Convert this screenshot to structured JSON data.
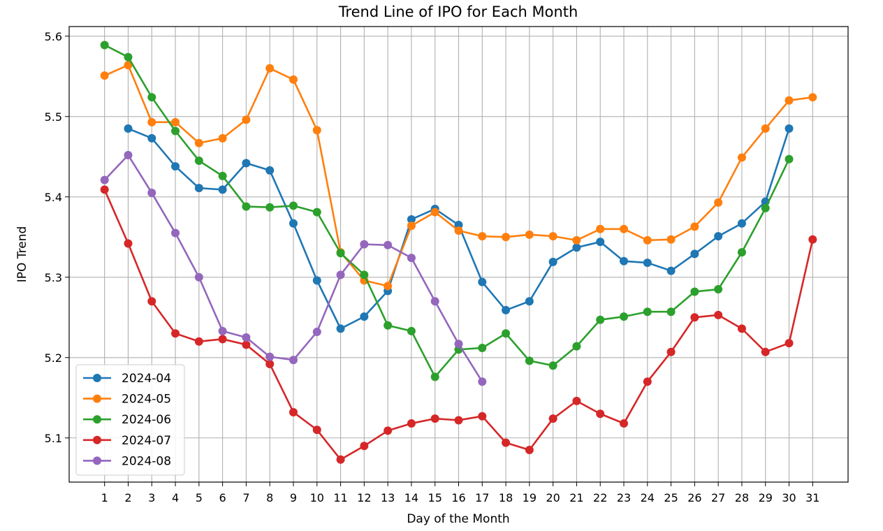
{
  "chart_data": {
    "type": "line",
    "title": "Trend Line of IPO for Each Month",
    "xlabel": "Day of the Month",
    "ylabel": "IPO Trend",
    "xlim": [
      -0.5,
      32.5
    ],
    "ylim": [
      5.045,
      5.612
    ],
    "grid": true,
    "legend_position": "lower-left",
    "x_ticks": [
      1,
      2,
      3,
      4,
      5,
      6,
      7,
      8,
      9,
      10,
      11,
      12,
      13,
      14,
      15,
      16,
      17,
      18,
      19,
      20,
      21,
      22,
      23,
      24,
      25,
      26,
      27,
      28,
      29,
      30,
      31
    ],
    "y_ticks": [
      5.1,
      5.2,
      5.3,
      5.4,
      5.5,
      5.6
    ],
    "y_tick_labels": [
      "5.1",
      "5.2",
      "5.3",
      "5.4",
      "5.5",
      "5.6"
    ],
    "series": [
      {
        "name": "2024-04",
        "color": "#1f77b4",
        "x": [
          2,
          3,
          4,
          5,
          6,
          7,
          8,
          9,
          10,
          11,
          12,
          13,
          14,
          15,
          16,
          17,
          18,
          19,
          20,
          21,
          22,
          23,
          24,
          25,
          26,
          27,
          28,
          29,
          30
        ],
        "values": [
          5.485,
          5.473,
          5.438,
          5.411,
          5.409,
          5.442,
          5.433,
          5.367,
          5.296,
          5.236,
          5.251,
          5.283,
          5.372,
          5.385,
          5.365,
          5.294,
          5.259,
          5.27,
          5.319,
          5.337,
          5.344,
          5.32,
          5.318,
          5.308,
          5.329,
          5.351,
          5.367,
          5.394,
          5.485
        ]
      },
      {
        "name": "2024-05",
        "color": "#ff7f0e",
        "x": [
          1,
          2,
          3,
          4,
          5,
          6,
          7,
          8,
          9,
          10,
          11,
          12,
          13,
          14,
          15,
          16,
          17,
          18,
          19,
          20,
          21,
          22,
          23,
          24,
          25,
          26,
          27,
          28,
          29,
          30,
          31
        ],
        "values": [
          5.551,
          5.564,
          5.493,
          5.493,
          5.467,
          5.473,
          5.496,
          5.56,
          5.546,
          5.483,
          5.331,
          5.296,
          5.289,
          5.364,
          5.381,
          5.358,
          5.351,
          5.35,
          5.353,
          5.351,
          5.346,
          5.36,
          5.36,
          5.346,
          5.347,
          5.363,
          5.393,
          5.449,
          5.485,
          5.52,
          5.524
        ]
      },
      {
        "name": "2024-06",
        "color": "#2ca02c",
        "x": [
          1,
          2,
          3,
          4,
          5,
          6,
          7,
          8,
          9,
          10,
          11,
          12,
          13,
          14,
          15,
          16,
          17,
          18,
          19,
          20,
          21,
          22,
          23,
          24,
          25,
          26,
          27,
          28,
          29,
          30
        ],
        "values": [
          5.589,
          5.574,
          5.524,
          5.482,
          5.445,
          5.426,
          5.388,
          5.387,
          5.389,
          5.381,
          5.33,
          5.303,
          5.24,
          5.233,
          5.176,
          5.21,
          5.212,
          5.23,
          5.196,
          5.19,
          5.214,
          5.247,
          5.251,
          5.257,
          5.257,
          5.282,
          5.285,
          5.331,
          5.386,
          5.447
        ]
      },
      {
        "name": "2024-07",
        "color": "#d62728",
        "x": [
          1,
          2,
          3,
          4,
          5,
          6,
          7,
          8,
          9,
          10,
          11,
          12,
          13,
          14,
          15,
          16,
          17,
          18,
          19,
          20,
          21,
          22,
          23,
          24,
          25,
          26,
          27,
          28,
          29,
          30,
          31
        ],
        "values": [
          5.409,
          5.342,
          5.27,
          5.23,
          5.22,
          5.223,
          5.216,
          5.192,
          5.132,
          5.11,
          5.073,
          5.09,
          5.109,
          5.118,
          5.124,
          5.122,
          5.127,
          5.094,
          5.085,
          5.124,
          5.146,
          5.13,
          5.118,
          5.17,
          5.207,
          5.25,
          5.253,
          5.236,
          5.207,
          5.218,
          5.347
        ]
      },
      {
        "name": "2024-08",
        "color": "#9467bd",
        "x": [
          1,
          2,
          3,
          4,
          5,
          6,
          7,
          8,
          9,
          10,
          11,
          12,
          13,
          14,
          15,
          16,
          17
        ],
        "values": [
          5.421,
          5.452,
          5.405,
          5.355,
          5.3,
          5.233,
          5.225,
          5.201,
          5.197,
          5.232,
          5.303,
          5.341,
          5.34,
          5.324,
          5.27,
          5.217,
          5.17
        ]
      }
    ]
  }
}
